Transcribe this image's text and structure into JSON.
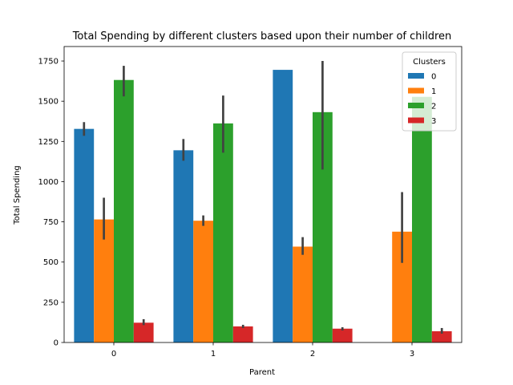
{
  "chart_data": {
    "type": "bar",
    "title": "Total Spending by different clusters based upon their number of children",
    "xlabel": "Parent",
    "ylabel": "Total Spending",
    "categories": [
      "0",
      "1",
      "2",
      "3"
    ],
    "ylim": [
      0,
      1840
    ],
    "yticks": [
      0,
      250,
      500,
      750,
      1000,
      1250,
      1500,
      1750
    ],
    "legend": {
      "title": "Clusters",
      "placement": "top-right"
    },
    "series": [
      {
        "name": "0",
        "color": "#1f77b4",
        "values": [
          1328,
          1195,
          1695,
          null
        ],
        "ci": [
          [
            1285,
            1370
          ],
          [
            1130,
            1265
          ],
          [
            null,
            null
          ],
          [
            null,
            null
          ]
        ]
      },
      {
        "name": "1",
        "color": "#ff7f0e",
        "values": [
          765,
          757,
          596,
          689
        ],
        "ci": [
          [
            640,
            900
          ],
          [
            725,
            790
          ],
          [
            545,
            655
          ],
          [
            495,
            935
          ]
        ]
      },
      {
        "name": "2",
        "color": "#2ca02c",
        "values": [
          1632,
          1362,
          1432,
          1527
        ],
        "ci": [
          [
            1530,
            1720
          ],
          [
            1180,
            1535
          ],
          [
            1075,
            1750
          ],
          [
            null,
            null
          ]
        ]
      },
      {
        "name": "3",
        "color": "#d62728",
        "values": [
          123,
          100,
          86,
          70
        ],
        "ci": [
          [
            108,
            145
          ],
          [
            90,
            110
          ],
          [
            75,
            95
          ],
          [
            55,
            90
          ]
        ]
      }
    ]
  }
}
